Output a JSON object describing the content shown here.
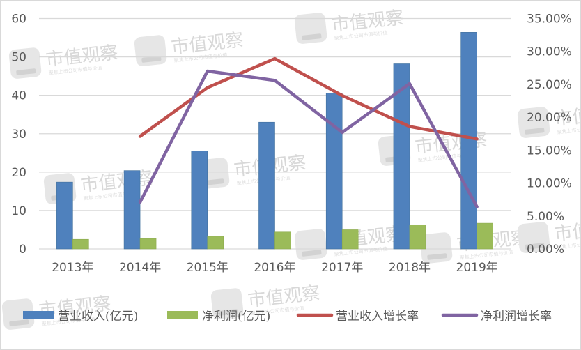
{
  "chart_data": {
    "type": "bar+line",
    "title": "",
    "categories": [
      "2013年",
      "2014年",
      "2015年",
      "2016年",
      "2017年",
      "2018年",
      "2019年"
    ],
    "series": [
      {
        "name": "营业收入(亿元)",
        "type": "bar",
        "axis": "left",
        "color": "#4f81bd",
        "values": [
          17.4,
          20.4,
          25.5,
          33.0,
          40.6,
          48.2,
          56.4
        ]
      },
      {
        "name": "净利润(亿元)",
        "type": "bar",
        "axis": "left",
        "color": "#9bbb59",
        "values": [
          2.5,
          2.7,
          3.3,
          4.4,
          5.0,
          6.3,
          6.7
        ]
      },
      {
        "name": "营业收入增长率",
        "type": "line",
        "axis": "right",
        "color": "#c0504d",
        "values": [
          null,
          17.1,
          24.5,
          28.9,
          23.3,
          18.6,
          16.7
        ]
      },
      {
        "name": "净利润增长率",
        "type": "line",
        "axis": "right",
        "color": "#8064a2",
        "values": [
          null,
          7.1,
          27.0,
          25.6,
          17.7,
          25.1,
          6.4
        ]
      }
    ],
    "left_axis": {
      "ylim": [
        0,
        60
      ],
      "ticks": [
        "0",
        "10",
        "20",
        "30",
        "40",
        "50",
        "60"
      ]
    },
    "right_axis": {
      "ylim": [
        0,
        35
      ],
      "ticks": [
        "0.00%",
        "5.00%",
        "10.00%",
        "15.00%",
        "20.00%",
        "25.00%",
        "30.00%",
        "35.00%"
      ]
    },
    "xlabel": "",
    "ylabel": "",
    "grid": true,
    "legend_position": "bottom"
  },
  "watermark": {
    "title": "市值观察",
    "subtitle": "聚焦上市公司市值与价值"
  }
}
